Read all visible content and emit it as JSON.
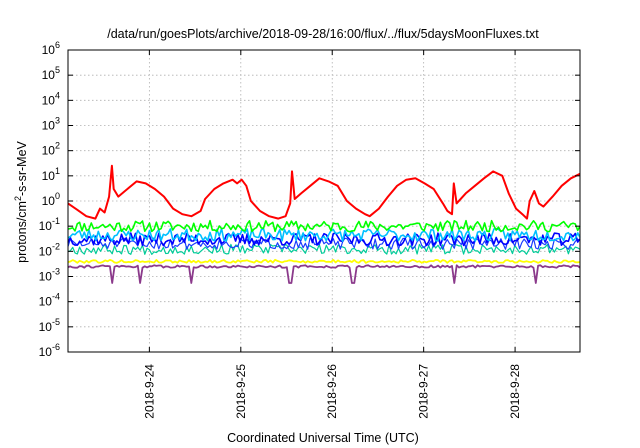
{
  "chart_data": {
    "type": "line",
    "title": "/data/run/goesPlots/archive/2018-09-28/16:00/flux/../flux/5daysMoonFluxes.txt",
    "xlabel": "Coordinated Universal Time (UTC)",
    "ylabel": "protons/cm2-s-sr-MeV",
    "ylabel_parts": {
      "base": "protons/cm",
      "sup": "2",
      "rest": "-s-sr-MeV"
    },
    "yscale": "log",
    "ylim_exp": [
      -6,
      6
    ],
    "xlim_days": [
      0,
      5.6
    ],
    "x_ticks": [
      {
        "label": "2018-9-24",
        "day": 0.89
      },
      {
        "label": "2018-9-25",
        "day": 1.89
      },
      {
        "label": "2018-9-26",
        "day": 2.89
      },
      {
        "label": "2018-9-27",
        "day": 3.89
      },
      {
        "label": "2018-9-28",
        "day": 4.89
      }
    ],
    "y_ticks": [
      {
        "base": "10",
        "exp": "-6"
      },
      {
        "base": "10",
        "exp": "-5"
      },
      {
        "base": "10",
        "exp": "-4"
      },
      {
        "base": "10",
        "exp": "-3"
      },
      {
        "base": "10",
        "exp": "-2"
      },
      {
        "base": "10",
        "exp": "-1"
      },
      {
        "base": "10",
        "exp": "0"
      },
      {
        "base": "10",
        "exp": "1"
      },
      {
        "base": "10",
        "exp": "2"
      },
      {
        "base": "10",
        "exp": "3"
      },
      {
        "base": "10",
        "exp": "4"
      },
      {
        "base": "10",
        "exp": "5"
      },
      {
        "base": "10",
        "exp": "6"
      }
    ],
    "grid": true,
    "series": [
      {
        "color": "#ff0000",
        "width": 2.0,
        "points": [
          [
            0.0,
            0.8
          ],
          [
            0.1,
            0.45
          ],
          [
            0.2,
            0.25
          ],
          [
            0.3,
            0.2
          ],
          [
            0.35,
            0.5
          ],
          [
            0.4,
            0.35
          ],
          [
            0.45,
            1.5
          ],
          [
            0.48,
            25
          ],
          [
            0.5,
            3
          ],
          [
            0.55,
            1.5
          ],
          [
            0.65,
            3
          ],
          [
            0.75,
            6
          ],
          [
            0.85,
            5
          ],
          [
            0.95,
            3
          ],
          [
            1.05,
            1.5
          ],
          [
            1.15,
            0.5
          ],
          [
            1.25,
            0.3
          ],
          [
            1.35,
            0.25
          ],
          [
            1.45,
            0.4
          ],
          [
            1.5,
            1.2
          ],
          [
            1.6,
            3
          ],
          [
            1.7,
            5
          ],
          [
            1.8,
            7
          ],
          [
            1.85,
            5
          ],
          [
            1.9,
            7
          ],
          [
            1.95,
            4
          ],
          [
            2.0,
            1
          ],
          [
            2.1,
            0.4
          ],
          [
            2.2,
            0.25
          ],
          [
            2.3,
            0.2
          ],
          [
            2.38,
            0.25
          ],
          [
            2.43,
            0.8
          ],
          [
            2.45,
            15
          ],
          [
            2.48,
            1.2
          ],
          [
            2.55,
            2
          ],
          [
            2.65,
            4
          ],
          [
            2.75,
            8
          ],
          [
            2.85,
            6
          ],
          [
            2.95,
            4
          ],
          [
            3.05,
            1
          ],
          [
            3.15,
            0.5
          ],
          [
            3.25,
            0.3
          ],
          [
            3.3,
            0.25
          ],
          [
            3.4,
            0.5
          ],
          [
            3.5,
            1.5
          ],
          [
            3.6,
            4
          ],
          [
            3.7,
            7
          ],
          [
            3.8,
            8
          ],
          [
            3.9,
            5
          ],
          [
            4.0,
            3
          ],
          [
            4.1,
            0.8
          ],
          [
            4.15,
            0.4
          ],
          [
            4.2,
            0.3
          ],
          [
            4.22,
            5
          ],
          [
            4.25,
            0.8
          ],
          [
            4.35,
            2
          ],
          [
            4.45,
            4
          ],
          [
            4.55,
            8
          ],
          [
            4.65,
            15
          ],
          [
            4.75,
            10
          ],
          [
            4.82,
            2
          ],
          [
            4.9,
            0.5
          ],
          [
            4.97,
            0.3
          ],
          [
            5.02,
            0.2
          ],
          [
            5.05,
            1
          ],
          [
            5.1,
            2.5
          ],
          [
            5.15,
            0.8
          ],
          [
            5.2,
            0.6
          ],
          [
            5.3,
            1.5
          ],
          [
            5.4,
            4
          ],
          [
            5.5,
            8
          ],
          [
            5.6,
            12
          ]
        ]
      },
      {
        "color": "#00ff00",
        "width": 1.6,
        "base": 0.1,
        "seed": 11,
        "amp": 0.22
      },
      {
        "color": "#00bfff",
        "width": 1.6,
        "base": 0.045,
        "seed": 23,
        "amp": 0.25
      },
      {
        "color": "#0000ff",
        "width": 1.6,
        "base": 0.03,
        "seed": 37,
        "amp": 0.25
      },
      {
        "color": "#1a3cff",
        "width": 1.2,
        "base": 0.02,
        "seed": 51,
        "amp": 0.22
      },
      {
        "color": "#00cc99",
        "width": 1.2,
        "base": 0.012,
        "seed": 67,
        "amp": 0.2
      },
      {
        "color": "#ffff00",
        "width": 1.8,
        "base": 0.004,
        "seed": 79,
        "amp": 0.06
      },
      {
        "color": "#8b3a8b",
        "width": 1.8,
        "base": 0.0025,
        "seed": 91,
        "amp": 0.05,
        "dips": [
          0.48,
          0.78,
          1.34,
          2.43,
          3.12,
          4.22,
          5.12
        ]
      }
    ]
  }
}
